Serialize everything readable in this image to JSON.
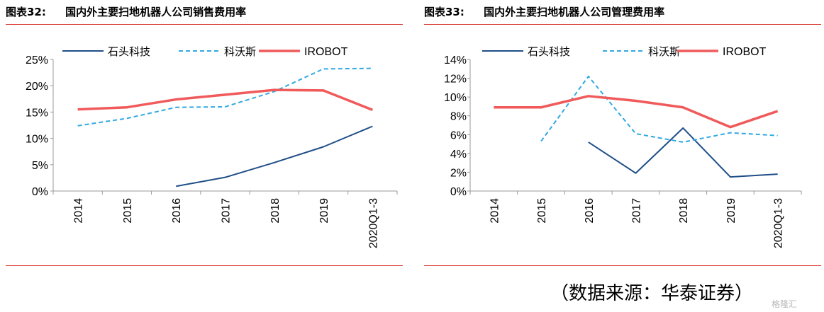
{
  "colors": {
    "shitou": "#1f4e87",
    "kewos": "#31a9e1",
    "irobot": "#f05a5b",
    "rule": "#d93a32",
    "axis": "#9a9a9a"
  },
  "chart_data": [
    {
      "type": "line",
      "fig_label": "图表32:",
      "title": "国内外主要扫地机器人公司销售费用率",
      "categories": [
        "2014",
        "2015",
        "2016",
        "2017",
        "2018",
        "2019",
        "2020Q1-3"
      ],
      "ylim": [
        0,
        25
      ],
      "yticks": [
        "0%",
        "5%",
        "10%",
        "15%",
        "20%",
        "25%"
      ],
      "ytick_values": [
        0,
        5,
        10,
        15,
        20,
        25
      ],
      "grid": false,
      "legend_position": "top",
      "series": [
        {
          "name": "石头科技",
          "style": "solid",
          "color": "#1f4e87",
          "values": [
            null,
            null,
            0.9,
            2.6,
            5.4,
            8.4,
            12.3
          ]
        },
        {
          "name": "科沃斯",
          "style": "dashed",
          "color": "#31a9e1",
          "values": [
            12.4,
            13.8,
            15.9,
            16.0,
            18.9,
            23.2,
            23.3
          ]
        },
        {
          "name": "IROBOT",
          "style": "solid",
          "color": "#f05a5b",
          "values": [
            15.5,
            15.9,
            17.4,
            18.3,
            19.2,
            19.1,
            15.4
          ]
        }
      ]
    },
    {
      "type": "line",
      "fig_label": "图表33:",
      "title": "国内外主要扫地机器人公司管理费用率",
      "categories": [
        "2014",
        "2015",
        "2016",
        "2017",
        "2018",
        "2019",
        "2020Q1-3"
      ],
      "ylim": [
        0,
        14
      ],
      "yticks": [
        "0%",
        "2%",
        "4%",
        "6%",
        "8%",
        "10%",
        "12%",
        "14%"
      ],
      "ytick_values": [
        0,
        2,
        4,
        6,
        8,
        10,
        12,
        14
      ],
      "grid": false,
      "legend_position": "top",
      "series": [
        {
          "name": "石头科技",
          "style": "solid",
          "color": "#1f4e87",
          "values": [
            null,
            null,
            5.2,
            1.9,
            6.7,
            1.5,
            1.8
          ]
        },
        {
          "name": "科沃斯",
          "style": "dashed",
          "color": "#31a9e1",
          "values": [
            null,
            5.3,
            12.2,
            6.1,
            5.2,
            6.2,
            5.9
          ]
        },
        {
          "name": "IROBOT",
          "style": "solid",
          "color": "#f05a5b",
          "values": [
            8.9,
            8.9,
            10.1,
            9.6,
            8.9,
            6.8,
            8.5
          ]
        }
      ]
    }
  ],
  "source_note": "（数据来源：华泰证券）",
  "watermark": "格隆汇"
}
